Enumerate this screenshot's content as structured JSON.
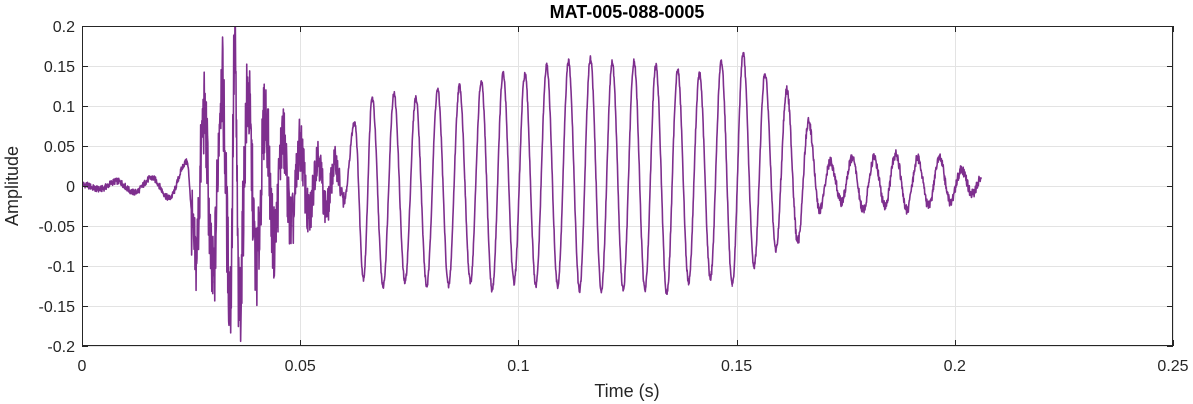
{
  "chart_data": {
    "type": "line",
    "title": "MAT-005-088-0005",
    "xlabel": "Time (s)",
    "ylabel": "Amplitude",
    "xlim": [
      0,
      0.25
    ],
    "ylim": [
      -0.2,
      0.2
    ],
    "xticks": [
      0,
      0.05,
      0.1,
      0.15,
      0.2,
      0.25
    ],
    "xtick_labels": [
      "0",
      "0.05",
      "0.1",
      "0.15",
      "0.2",
      "0.25"
    ],
    "yticks": [
      0.2,
      0.15,
      0.1,
      0.05,
      0,
      -0.05,
      -0.1,
      -0.15,
      -0.2
    ],
    "ytick_labels": [
      "0.2",
      "0.15",
      "0.1",
      "0.05",
      "0",
      "-0.05",
      "-0.1",
      "-0.15",
      "-0.2"
    ],
    "grid": true,
    "line_color": "#7E2F8E",
    "series": [
      {
        "x": [
          0,
          0.004,
          0.008,
          0.012,
          0.016,
          0.02,
          0.024,
          0.026,
          0.028,
          0.03,
          0.032,
          0.034,
          0.035,
          0.036,
          0.038,
          0.04,
          0.042,
          0.044,
          0.046,
          0.048,
          0.05,
          0.052,
          0.054,
          0.056,
          0.058,
          0.06,
          0.0625,
          0.0645,
          0.0665,
          0.069,
          0.0715,
          0.074,
          0.0765,
          0.079,
          0.0815,
          0.084,
          0.0865,
          0.089,
          0.0915,
          0.094,
          0.0965,
          0.099,
          0.1015,
          0.104,
          0.1065,
          0.109,
          0.1115,
          0.114,
          0.1165,
          0.119,
          0.1215,
          0.124,
          0.1265,
          0.129,
          0.1315,
          0.134,
          0.1365,
          0.139,
          0.1415,
          0.144,
          0.1465,
          0.149,
          0.1515,
          0.154,
          0.1565,
          0.159,
          0.1615,
          0.164,
          0.1665,
          0.169,
          0.1715,
          0.174,
          0.1765,
          0.179,
          0.1815,
          0.184,
          0.1865,
          0.189,
          0.1915,
          0.194,
          0.1965,
          0.199,
          0.2015,
          0.204,
          0.206
        ],
        "values": [
          0.002,
          -0.004,
          0.006,
          -0.008,
          0.01,
          -0.015,
          0.03,
          -0.09,
          0.09,
          -0.12,
          0.13,
          -0.14,
          0.17,
          -0.155,
          0.11,
          -0.1,
          0.09,
          -0.07,
          0.06,
          -0.05,
          0.05,
          -0.04,
          0.04,
          -0.03,
          0.03,
          -0.02,
          0.08,
          -0.115,
          0.11,
          -0.125,
          0.115,
          -0.12,
          0.11,
          -0.125,
          0.12,
          -0.125,
          0.125,
          -0.12,
          0.13,
          -0.13,
          0.14,
          -0.12,
          0.14,
          -0.125,
          0.15,
          -0.125,
          0.155,
          -0.13,
          0.16,
          -0.13,
          0.155,
          -0.13,
          0.155,
          -0.13,
          0.15,
          -0.135,
          0.145,
          -0.12,
          0.14,
          -0.115,
          0.155,
          -0.125,
          0.165,
          -0.1,
          0.14,
          -0.08,
          0.12,
          -0.07,
          0.08,
          -0.03,
          0.03,
          -0.02,
          0.035,
          -0.03,
          0.035,
          -0.025,
          0.04,
          -0.03,
          0.035,
          -0.025,
          0.035,
          -0.02,
          0.02,
          -0.01,
          0.01
        ]
      }
    ]
  }
}
